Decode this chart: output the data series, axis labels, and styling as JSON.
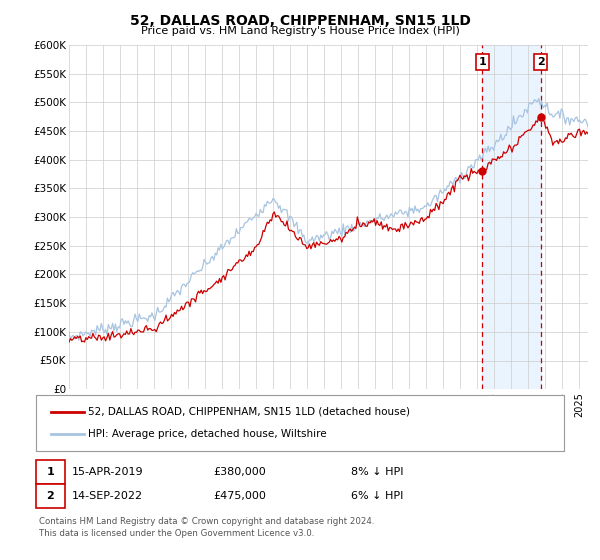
{
  "title": "52, DALLAS ROAD, CHIPPENHAM, SN15 1LD",
  "subtitle": "Price paid vs. HM Land Registry's House Price Index (HPI)",
  "ylabel_ticks": [
    "£0",
    "£50K",
    "£100K",
    "£150K",
    "£200K",
    "£250K",
    "£300K",
    "£350K",
    "£400K",
    "£450K",
    "£500K",
    "£550K",
    "£600K"
  ],
  "ytick_values": [
    0,
    50000,
    100000,
    150000,
    200000,
    250000,
    300000,
    350000,
    400000,
    450000,
    500000,
    550000,
    600000
  ],
  "xlim": [
    1995.0,
    2025.5
  ],
  "ylim": [
    0,
    600000
  ],
  "hpi_color": "#a8c4e0",
  "price_color": "#cc0000",
  "marker1_date": 2019.29,
  "marker1_price": 380000,
  "marker2_date": 2022.71,
  "marker2_price": 475000,
  "vline_color": "#cc0000",
  "shade_color": "#ddeeff",
  "legend_line1": "52, DALLAS ROAD, CHIPPENHAM, SN15 1LD (detached house)",
  "legend_line2": "HPI: Average price, detached house, Wiltshire",
  "annotation1_date": "15-APR-2019",
  "annotation1_price": "£380,000",
  "annotation1_hpi": "8% ↓ HPI",
  "annotation2_date": "14-SEP-2022",
  "annotation2_price": "£475,000",
  "annotation2_hpi": "6% ↓ HPI",
  "footer1": "Contains HM Land Registry data © Crown copyright and database right 2024.",
  "footer2": "This data is licensed under the Open Government Licence v3.0.",
  "background_color": "#ffffff",
  "grid_color": "#cccccc",
  "hpi_phases": [
    [
      1995,
      90000
    ],
    [
      2000,
      128000
    ],
    [
      2007,
      335000
    ],
    [
      2009,
      258000
    ],
    [
      2013,
      295000
    ],
    [
      2016,
      318000
    ],
    [
      2020,
      425000
    ],
    [
      2022.5,
      508000
    ],
    [
      2023.5,
      478000
    ],
    [
      2025,
      468000
    ]
  ],
  "price_phases": [
    [
      1995,
      85000
    ],
    [
      1997,
      90000
    ],
    [
      2000,
      105000
    ],
    [
      2004,
      195000
    ],
    [
      2006,
      248000
    ],
    [
      2007,
      308000
    ],
    [
      2008,
      278000
    ],
    [
      2009,
      248000
    ],
    [
      2011,
      262000
    ],
    [
      2012,
      288000
    ],
    [
      2013,
      293000
    ],
    [
      2014,
      278000
    ],
    [
      2015,
      288000
    ],
    [
      2016,
      298000
    ],
    [
      2017,
      328000
    ],
    [
      2018,
      368000
    ],
    [
      2019.29,
      380000
    ],
    [
      2020,
      398000
    ],
    [
      2021,
      418000
    ],
    [
      2022.71,
      475000
    ],
    [
      2023.5,
      428000
    ],
    [
      2025,
      448000
    ]
  ]
}
